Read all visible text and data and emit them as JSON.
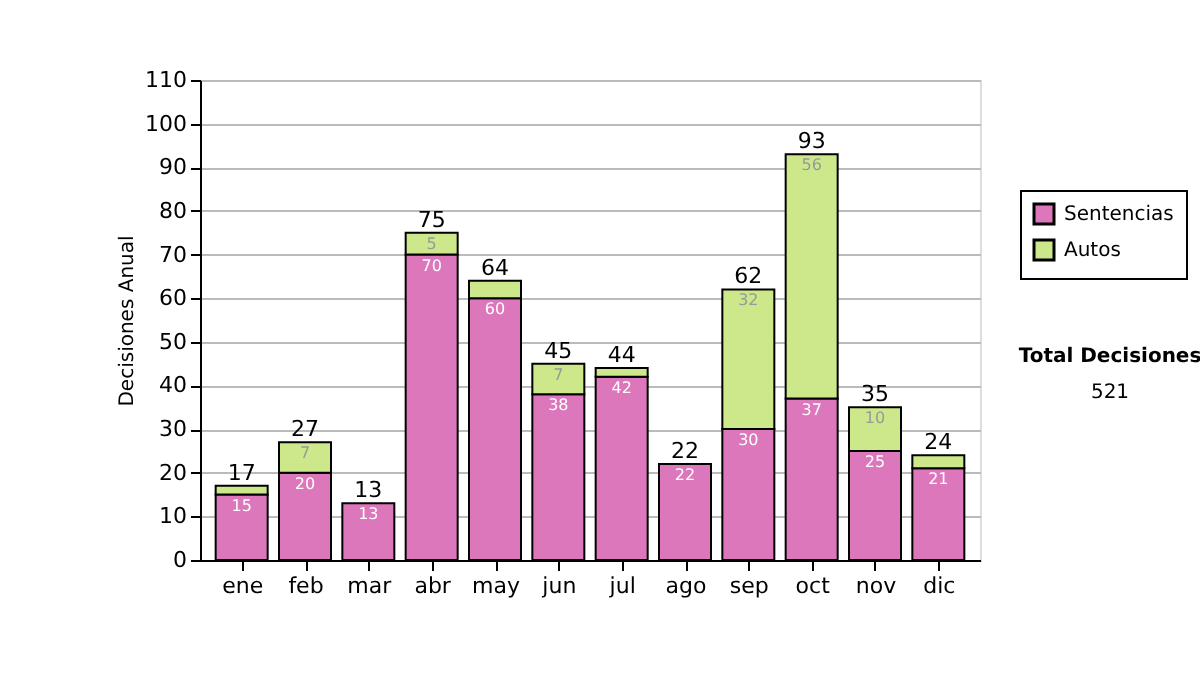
{
  "chart_data": {
    "type": "bar",
    "stacked": true,
    "ylabel": "Decisiones Anual",
    "categories": [
      "ene",
      "feb",
      "mar",
      "abr",
      "may",
      "jun",
      "jul",
      "ago",
      "sep",
      "oct",
      "nov",
      "dic"
    ],
    "series": [
      {
        "name": "Sentencias",
        "color": "#dd77bb",
        "values": [
          15,
          20,
          13,
          70,
          60,
          38,
          42,
          22,
          30,
          37,
          25,
          21
        ],
        "value_labels": [
          "15",
          "20",
          "13",
          "70",
          "60",
          "38",
          "42",
          "22",
          "30",
          "37",
          "25",
          "21"
        ]
      },
      {
        "name": "Autos",
        "color": "#cce88a",
        "values": [
          2,
          7,
          0,
          5,
          4,
          7,
          2,
          0,
          32,
          56,
          10,
          3
        ],
        "value_labels": [
          null,
          "7",
          null,
          "5",
          null,
          "7",
          null,
          null,
          "32",
          "56",
          "10",
          null
        ]
      }
    ],
    "totals": [
      "17",
      "27",
      "13",
      "75",
      "64",
      "45",
      "44",
      "22",
      "62",
      "93",
      "35",
      "24"
    ],
    "ylim": [
      0,
      110
    ],
    "yticks": [
      0,
      10,
      20,
      30,
      40,
      50,
      60,
      70,
      80,
      90,
      100,
      110
    ],
    "grid": "y",
    "legend": "right",
    "annotations": [
      "Total Decisiones",
      "521"
    ]
  }
}
